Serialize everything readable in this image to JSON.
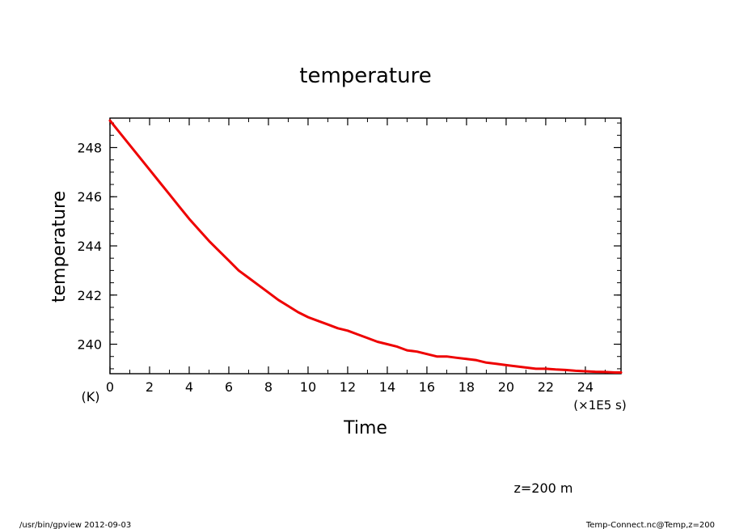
{
  "chart_data": {
    "type": "line",
    "title": "temperature",
    "xlabel": "Time",
    "ylabel": "temperature",
    "x_unit_label": "(×1E5 s)",
    "y_unit_label": "(K)",
    "xlim": [
      0,
      25.8
    ],
    "ylim": [
      238.8,
      249.2
    ],
    "x_ticks": [
      0,
      2,
      4,
      6,
      8,
      10,
      12,
      14,
      16,
      18,
      20,
      22,
      24
    ],
    "y_ticks": [
      240,
      242,
      244,
      246,
      248
    ],
    "grid": false,
    "legend": "none",
    "series": [
      {
        "color": "#ee0000",
        "x": [
          0,
          0.5,
          1,
          1.5,
          2,
          2.5,
          3,
          3.5,
          4,
          4.5,
          5,
          5.5,
          6,
          6.5,
          7,
          7.5,
          8,
          8.5,
          9,
          9.5,
          10,
          10.5,
          11,
          11.5,
          12,
          12.5,
          13,
          13.5,
          14,
          14.5,
          15,
          15.5,
          16,
          16.5,
          17,
          17.5,
          18,
          18.5,
          19,
          19.5,
          20,
          20.5,
          21,
          21.5,
          22,
          22.5,
          23,
          23.5,
          24,
          24.5,
          25,
          25.5,
          25.8
        ],
        "y": [
          249.1,
          248.6,
          248.1,
          247.6,
          247.1,
          246.6,
          246.1,
          245.6,
          245.1,
          244.65,
          244.2,
          243.8,
          243.4,
          243.0,
          242.7,
          242.4,
          242.1,
          241.8,
          241.55,
          241.3,
          241.1,
          240.95,
          240.8,
          240.65,
          240.55,
          240.4,
          240.25,
          240.1,
          240.0,
          239.9,
          239.75,
          239.7,
          239.6,
          239.5,
          239.5,
          239.45,
          239.4,
          239.35,
          239.25,
          239.2,
          239.15,
          239.1,
          239.05,
          239.0,
          239.0,
          238.97,
          238.95,
          238.92,
          238.9,
          238.88,
          238.87,
          238.85,
          238.85
        ]
      }
    ]
  },
  "annotations": {
    "level": "z=200 m",
    "footer_left": "/usr/bin/gpview   2012-09-03",
    "footer_right": "Temp-Connect.nc@Temp,z=200"
  }
}
